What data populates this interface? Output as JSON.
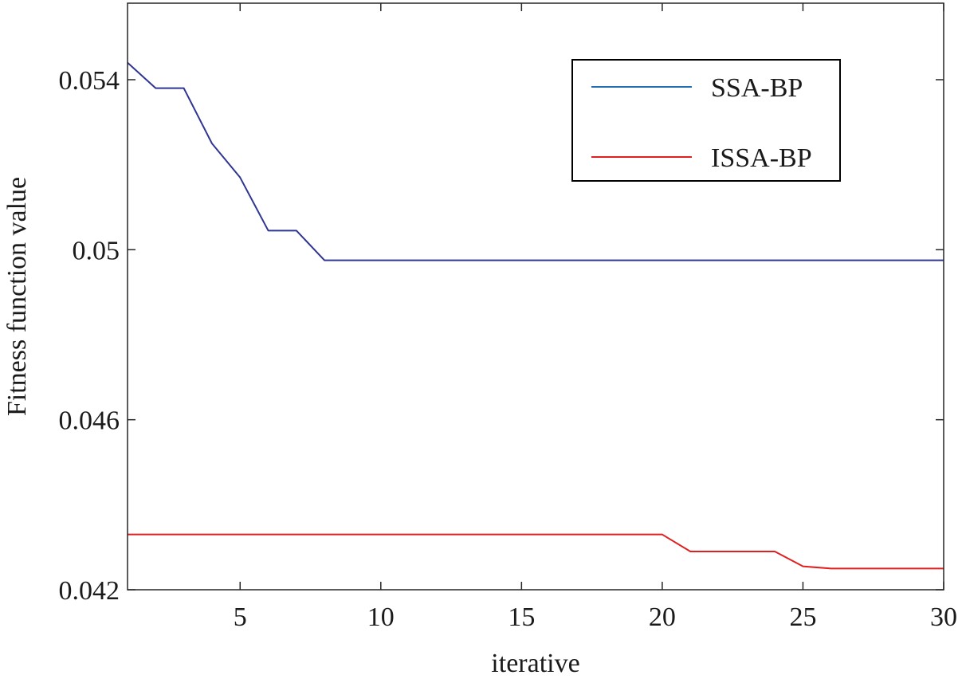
{
  "chart_data": {
    "type": "line",
    "title": "",
    "xlabel": "iterative",
    "ylabel": "Fitness function value",
    "xlim": [
      1,
      30
    ],
    "ylim": [
      0.042,
      0.0558
    ],
    "xticks": [
      5,
      10,
      15,
      20,
      25,
      30
    ],
    "xtick_labels": [
      "5",
      "10",
      "15",
      "20",
      "25",
      "30"
    ],
    "yticks": [
      0.042,
      0.046,
      0.05,
      0.054
    ],
    "ytick_labels": [
      "0.042",
      "0.046",
      "0.05",
      "0.054"
    ],
    "grid": false,
    "legend_position": "top-right",
    "x": [
      1,
      2,
      3,
      4,
      5,
      6,
      7,
      8,
      9,
      10,
      11,
      12,
      13,
      14,
      15,
      16,
      17,
      18,
      19,
      20,
      21,
      22,
      23,
      24,
      25,
      26,
      27,
      28,
      29,
      30
    ],
    "series": [
      {
        "name": "SSA-BP",
        "color": "#2f3593",
        "legend_color": "#1f6eb5",
        "values": [
          0.0544,
          0.0538,
          0.0538,
          0.0525,
          0.0517,
          0.05045,
          0.05045,
          0.04975,
          0.04975,
          0.04975,
          0.04975,
          0.04975,
          0.04975,
          0.04975,
          0.04975,
          0.04975,
          0.04975,
          0.04975,
          0.04975,
          0.04975,
          0.04975,
          0.04975,
          0.04975,
          0.04975,
          0.04975,
          0.04975,
          0.04975,
          0.04975,
          0.04975,
          0.04975
        ]
      },
      {
        "name": "ISSA-BP",
        "color": "#e02020",
        "legend_color": "#e02020",
        "values": [
          0.0433,
          0.0433,
          0.0433,
          0.0433,
          0.0433,
          0.0433,
          0.0433,
          0.0433,
          0.0433,
          0.0433,
          0.0433,
          0.0433,
          0.0433,
          0.0433,
          0.0433,
          0.0433,
          0.0433,
          0.0433,
          0.0433,
          0.0433,
          0.0429,
          0.0429,
          0.0429,
          0.0429,
          0.04255,
          0.0425,
          0.0425,
          0.0425,
          0.0425,
          0.0425
        ]
      }
    ]
  }
}
